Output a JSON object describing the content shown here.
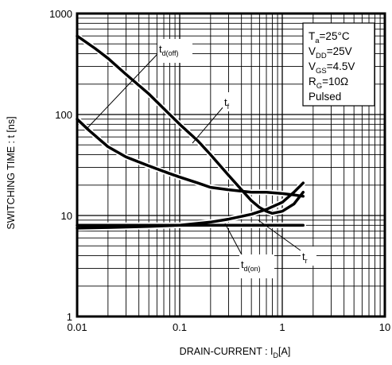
{
  "chart_data": {
    "type": "line",
    "title": "",
    "xlabel": "DRAIN-CURRENT : I",
    "xlabel_sub": "D",
    "xlabel_unit": "[A]",
    "ylabel": "SWITCHING TIME : t [ns]",
    "x_scale": "log",
    "y_scale": "log",
    "xlim": [
      0.01,
      10
    ],
    "ylim": [
      1,
      1000
    ],
    "grid": true,
    "x_ticks": [
      "0.01",
      "0.1",
      "1",
      "10"
    ],
    "y_ticks": [
      "1",
      "10",
      "100",
      "1000"
    ],
    "series": [
      {
        "name": "td(off)",
        "label_main": "t",
        "label_sub": "d(off)",
        "x": [
          0.01,
          0.013,
          0.02,
          0.03,
          0.05,
          0.08,
          0.1,
          0.15,
          0.2,
          0.3,
          0.5,
          0.7,
          1.0,
          1.3,
          1.6
        ],
        "y": [
          90,
          70,
          48,
          38,
          31,
          26,
          24,
          21,
          19,
          18,
          17,
          17,
          16.5,
          16,
          15.5
        ]
      },
      {
        "name": "tf",
        "label_main": "t",
        "label_sub": "f",
        "x": [
          0.01,
          0.015,
          0.02,
          0.03,
          0.05,
          0.08,
          0.1,
          0.15,
          0.2,
          0.3,
          0.4,
          0.5,
          0.6,
          0.7,
          0.8,
          1.0,
          1.3,
          1.6
        ],
        "y": [
          600,
          450,
          360,
          250,
          160,
          100,
          80,
          55,
          40,
          25,
          18,
          14,
          12,
          11,
          10.5,
          11,
          13,
          17
        ]
      },
      {
        "name": "tr",
        "label_main": "t",
        "label_sub": "r",
        "x": [
          0.01,
          0.02,
          0.05,
          0.1,
          0.2,
          0.3,
          0.5,
          0.7,
          1.0,
          1.3,
          1.6
        ],
        "y": [
          7.5,
          7.6,
          7.8,
          8.0,
          8.6,
          9.2,
          10.3,
          11.5,
          13.5,
          17,
          21
        ]
      },
      {
        "name": "td(on)",
        "label_main": "t",
        "label_sub": "d(on)",
        "x": [
          0.01,
          0.1,
          0.5,
          1.0,
          1.6
        ],
        "y": [
          8.0,
          8.0,
          8.0,
          8.0,
          8.0
        ]
      }
    ],
    "conditions": [
      {
        "main": "T",
        "sub": "a",
        "rest": "=25°C"
      },
      {
        "main": "V",
        "sub": "DD",
        "rest": "=25V"
      },
      {
        "main": "V",
        "sub": "GS",
        "rest": "=4.5V"
      },
      {
        "main": "R",
        "sub": "G",
        "rest": "=10Ω"
      },
      {
        "main": "Pulsed",
        "sub": "",
        "rest": ""
      }
    ],
    "colors": {
      "line": "#000000",
      "grid": "#000000",
      "background": "#ffffff"
    }
  }
}
